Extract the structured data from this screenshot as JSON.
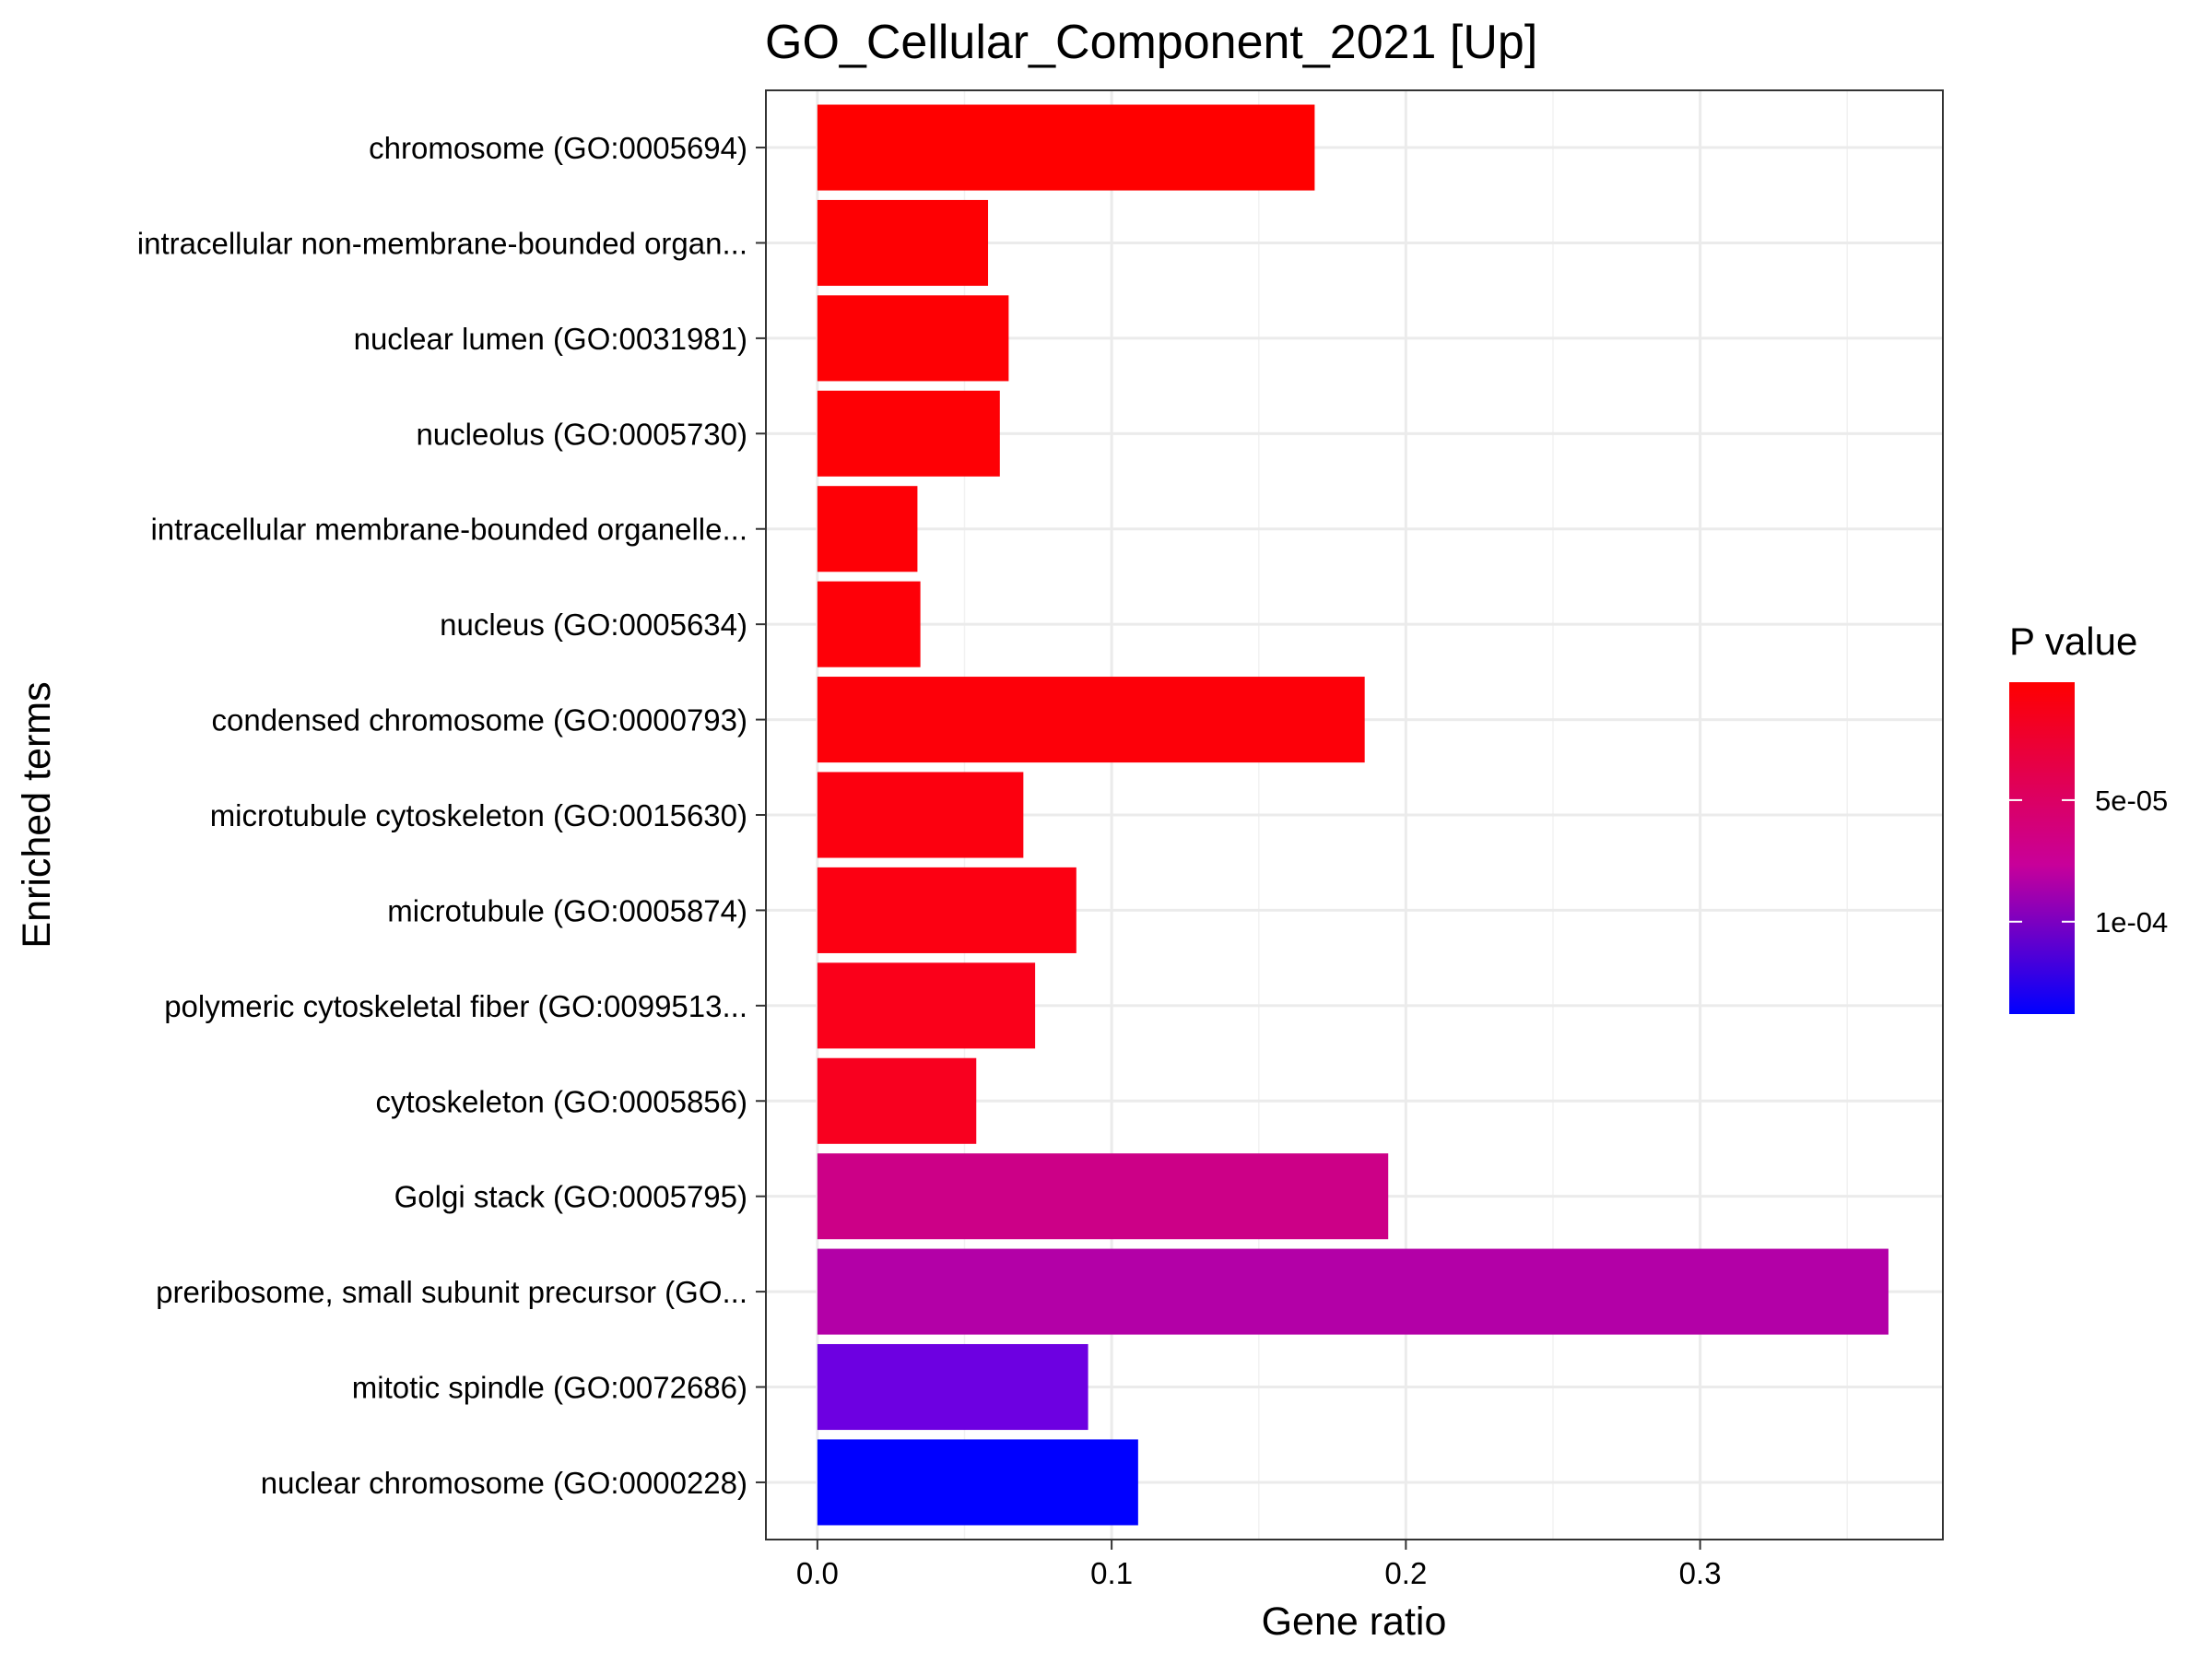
{
  "chart_data": {
    "type": "bar",
    "orientation": "horizontal",
    "title": "GO_Cellular_Component_2021 [Up]",
    "xlabel": "Gene ratio",
    "ylabel": "Enriched terms",
    "xlim": [
      -0.0175,
      0.3825
    ],
    "x_ticks": [
      0.0,
      0.1,
      0.2,
      0.3
    ],
    "x_tick_labels": [
      "0.0",
      "0.1",
      "0.2",
      "0.3"
    ],
    "grid": true,
    "legend": {
      "title": "P value",
      "placement": "right",
      "type": "gradient",
      "range": [
        1.5e-06,
        0.000138
      ],
      "tick_values": [
        5e-05,
        0.0001
      ],
      "tick_labels": [
        "5e-05",
        "1e-04"
      ],
      "colors": {
        "low": "#FF0000",
        "mid": "#C8009A",
        "high": "#0000FF"
      }
    },
    "categories": [
      "chromosome (GO:0005694)",
      "intracellular non-membrane-bounded organ...",
      "nuclear lumen (GO:0031981)",
      "nucleolus (GO:0005730)",
      "intracellular membrane-bounded organelle...",
      "nucleus (GO:0005634)",
      "condensed chromosome (GO:0000793)",
      "microtubule cytoskeleton (GO:0015630)",
      "microtubule (GO:0005874)",
      "polymeric cytoskeletal fiber (GO:0099513...",
      "cytoskeleton (GO:0005856)",
      "Golgi stack (GO:0005795)",
      "preribosome, small subunit precursor (GO...",
      "mitotic spindle (GO:0072686)",
      "nuclear chromosome (GO:0000228)"
    ],
    "values": [
      0.169,
      0.058,
      0.065,
      0.062,
      0.034,
      0.035,
      0.186,
      0.07,
      0.088,
      0.074,
      0.054,
      0.194,
      0.364,
      0.092,
      0.109
    ],
    "p_values": [
      2e-06,
      4e-06,
      5e-06,
      6e-06,
      7e-06,
      9e-06,
      1e-05,
      1.4e-05,
      1.6e-05,
      2.2e-05,
      2.6e-05,
      5.3e-05,
      7e-05,
      0.00011,
      0.000135
    ],
    "bar_colors": [
      "#FF0000",
      "#FE0003",
      "#FE0004",
      "#FE0005",
      "#FE0006",
      "#FE0008",
      "#FD0009",
      "#FC000F",
      "#FC0012",
      "#FA001A",
      "#F8001F",
      "#CC0087",
      "#B300A7",
      "#6D00E1",
      "#0000FF"
    ]
  }
}
